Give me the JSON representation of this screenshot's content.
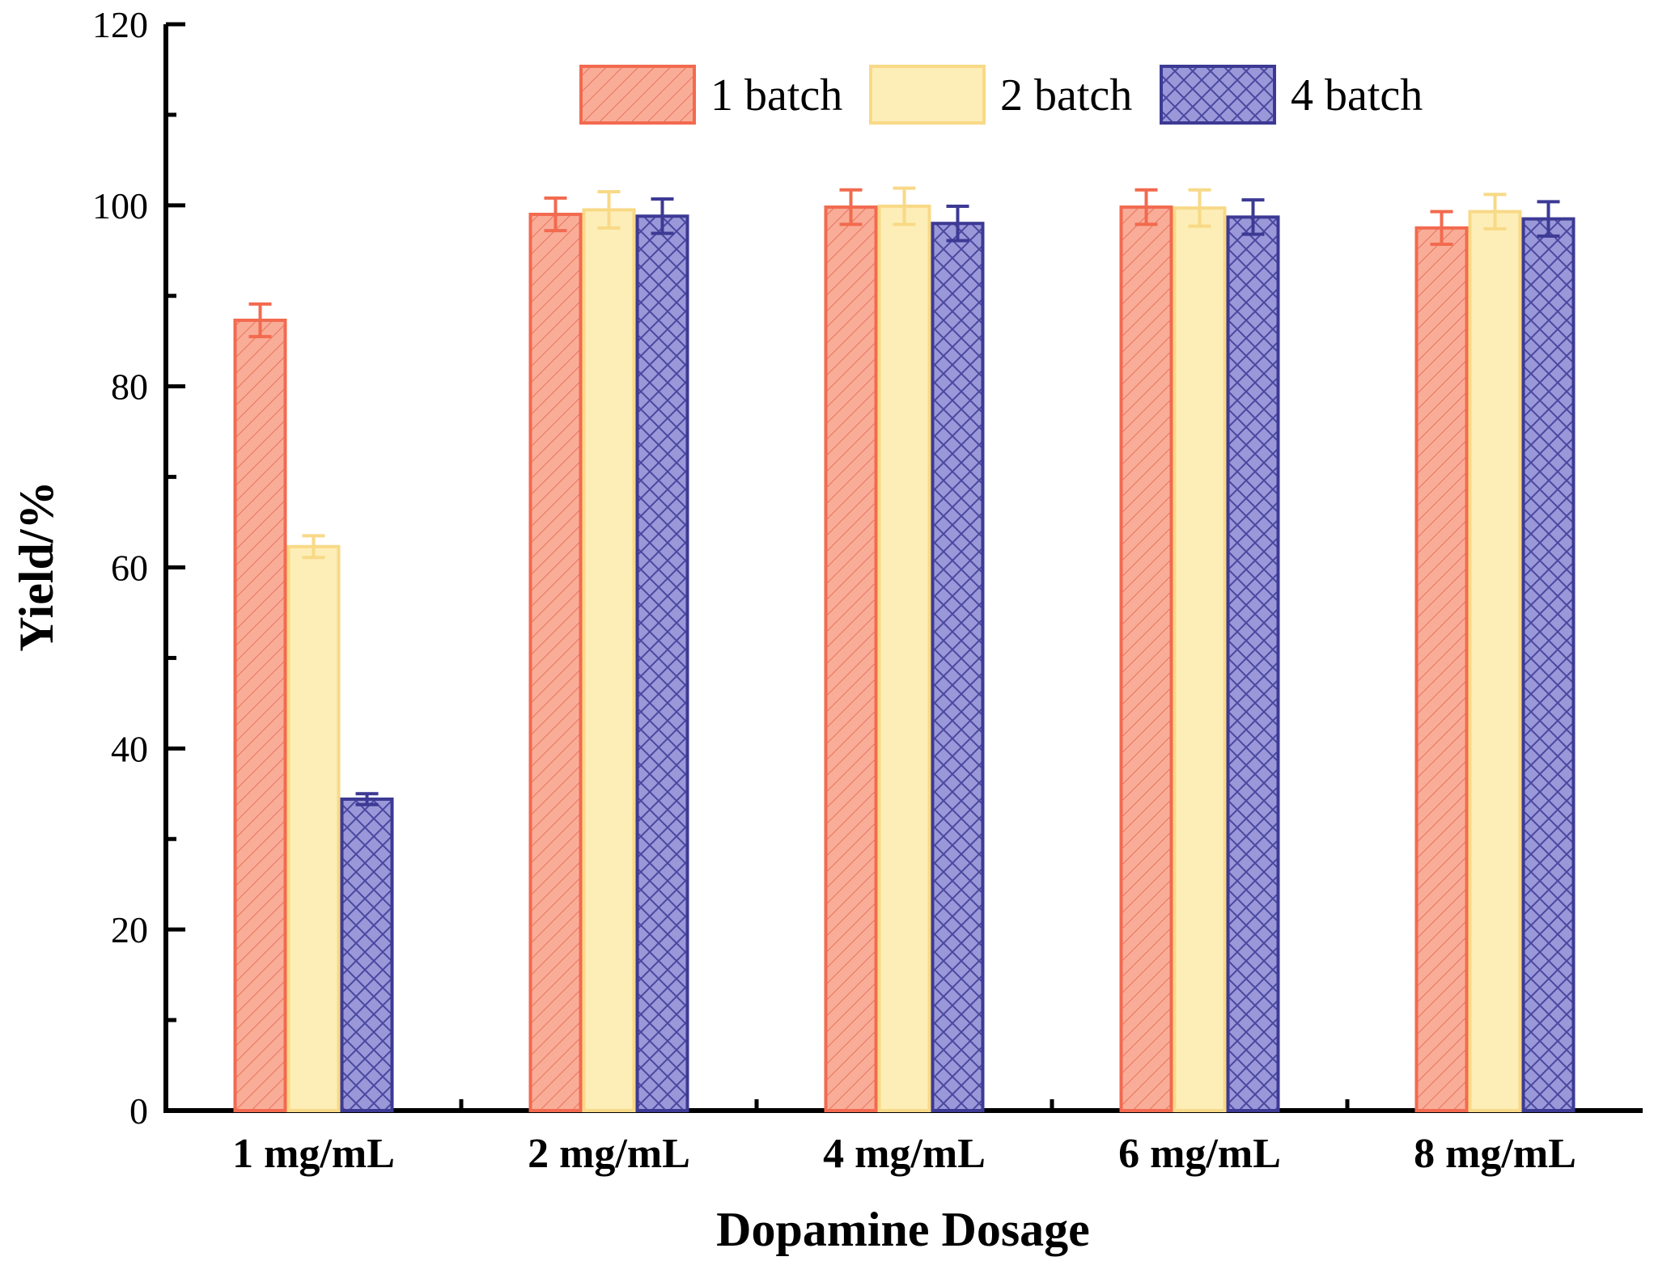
{
  "chart_data": {
    "type": "bar",
    "xlabel": "Dopamine Dosage",
    "ylabel": "Yield/%",
    "ylim": [
      0,
      120
    ],
    "yticks": [
      0,
      20,
      40,
      60,
      80,
      100,
      120
    ],
    "categories": [
      "1 mg/mL",
      "2 mg/mL",
      "4 mg/mL",
      "6 mg/mL",
      "8 mg/mL"
    ],
    "legend_position": "top-right",
    "grid": false,
    "series": [
      {
        "name": "1 batch",
        "color": "#f26a4f",
        "fill": "#f9ad98",
        "pattern": "diagonal-hatch",
        "values": [
          87.3,
          99.0,
          99.8,
          99.8,
          97.5
        ],
        "errors": [
          1.8,
          1.8,
          1.9,
          1.9,
          1.8
        ]
      },
      {
        "name": "2 batch",
        "color": "#f8d987",
        "fill": "#fdeeb7",
        "pattern": "solid",
        "values": [
          62.3,
          99.5,
          99.9,
          99.7,
          99.3
        ],
        "errors": [
          1.2,
          2.0,
          2.0,
          2.0,
          1.9
        ]
      },
      {
        "name": "4 batch",
        "color": "#3c3a94",
        "fill": "#9a98d8",
        "pattern": "cross-hatch",
        "values": [
          34.4,
          98.8,
          98.0,
          98.7,
          98.5
        ],
        "errors": [
          0.6,
          1.9,
          1.9,
          1.9,
          1.9
        ]
      }
    ]
  }
}
